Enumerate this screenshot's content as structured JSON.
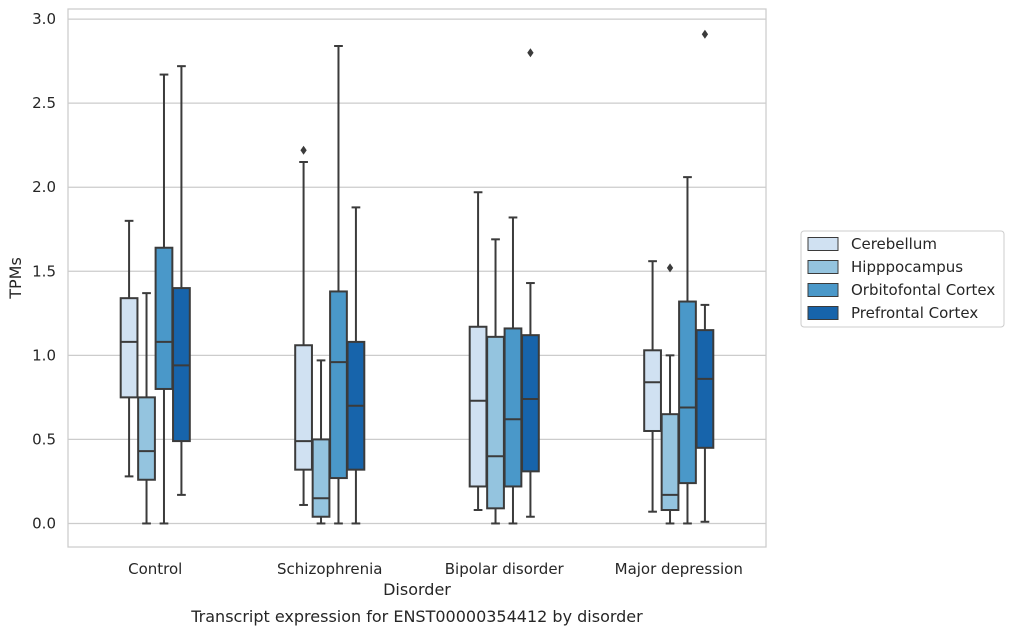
{
  "chart_data": {
    "type": "boxplot",
    "caption": "Transcript expression for ENST00000354412 by disorder",
    "xlabel": "Disorder",
    "ylabel": "TPMs",
    "ylim": [
      -0.14,
      3.06
    ],
    "yticks": [
      "0.0",
      "0.5",
      "1.0",
      "1.5",
      "2.0",
      "2.5",
      "3.0"
    ],
    "grid": "horizontal",
    "legend_position": "right",
    "categories": [
      "Control",
      "Schizophrenia",
      "Bipolar disorder",
      "Major depression"
    ],
    "series": [
      {
        "name": "Cerebellum",
        "color": "#d0e1f2",
        "boxes": [
          {
            "whislo": 0.28,
            "q1": 0.75,
            "med": 1.08,
            "q3": 1.34,
            "whishi": 1.8,
            "fliers": []
          },
          {
            "whislo": 0.11,
            "q1": 0.32,
            "med": 0.49,
            "q3": 1.06,
            "whishi": 2.15,
            "fliers": [
              2.22
            ]
          },
          {
            "whislo": 0.08,
            "q1": 0.22,
            "med": 0.73,
            "q3": 1.17,
            "whishi": 1.97,
            "fliers": []
          },
          {
            "whislo": 0.07,
            "q1": 0.55,
            "med": 0.84,
            "q3": 1.03,
            "whishi": 1.56,
            "fliers": []
          }
        ]
      },
      {
        "name": "Hipppocampus",
        "color": "#94c4df",
        "boxes": [
          {
            "whislo": 0.0,
            "q1": 0.26,
            "med": 0.43,
            "q3": 0.75,
            "whishi": 1.37,
            "fliers": []
          },
          {
            "whislo": 0.0,
            "q1": 0.04,
            "med": 0.15,
            "q3": 0.5,
            "whishi": 0.97,
            "fliers": []
          },
          {
            "whislo": 0.0,
            "q1": 0.09,
            "med": 0.4,
            "q3": 1.11,
            "whishi": 1.69,
            "fliers": []
          },
          {
            "whislo": 0.0,
            "q1": 0.08,
            "med": 0.17,
            "q3": 0.65,
            "whishi": 1.0,
            "fliers": [
              1.52
            ]
          }
        ]
      },
      {
        "name": "Orbitofontal Cortex",
        "color": "#4a98c9",
        "boxes": [
          {
            "whislo": 0.0,
            "q1": 0.8,
            "med": 1.08,
            "q3": 1.64,
            "whishi": 2.67,
            "fliers": []
          },
          {
            "whislo": 0.0,
            "q1": 0.27,
            "med": 0.96,
            "q3": 1.38,
            "whishi": 2.84,
            "fliers": []
          },
          {
            "whislo": 0.0,
            "q1": 0.22,
            "med": 0.62,
            "q3": 1.16,
            "whishi": 1.82,
            "fliers": []
          },
          {
            "whislo": 0.0,
            "q1": 0.24,
            "med": 0.69,
            "q3": 1.32,
            "whishi": 2.06,
            "fliers": []
          }
        ]
      },
      {
        "name": "Prefrontal Cortex",
        "color": "#1764ab",
        "boxes": [
          {
            "whislo": 0.17,
            "q1": 0.49,
            "med": 0.94,
            "q3": 1.4,
            "whishi": 2.72,
            "fliers": []
          },
          {
            "whislo": 0.0,
            "q1": 0.32,
            "med": 0.7,
            "q3": 1.08,
            "whishi": 1.88,
            "fliers": []
          },
          {
            "whislo": 0.04,
            "q1": 0.31,
            "med": 0.74,
            "q3": 1.12,
            "whishi": 1.43,
            "fliers": [
              2.8
            ]
          },
          {
            "whislo": 0.01,
            "q1": 0.45,
            "med": 0.86,
            "q3": 1.15,
            "whishi": 1.3,
            "fliers": [
              2.91
            ]
          }
        ]
      }
    ]
  }
}
